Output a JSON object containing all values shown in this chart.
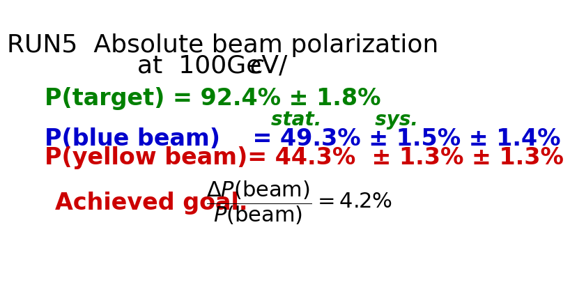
{
  "bg_color": "#ffffff",
  "title_line1": "RUN5  Absolute beam polarization",
  "title_line2": "at  100GeV/",
  "title_italic_c": "c",
  "title_color": "#000000",
  "title_fontsize": 26,
  "ptarget_text": "P(target) = 92.4% ± 1.8%",
  "ptarget_color": "#008000",
  "ptarget_fontsize": 24,
  "stat_sys_text": "stat.        sys.",
  "stat_sys_color": "#008000",
  "stat_sys_fontsize": 20,
  "pblue_label": "P(blue beam)    = 49.3% ± 1.5% ± 1.4%",
  "pblue_color": "#0000cc",
  "pblue_fontsize": 24,
  "pyellow_label": "P(yellow beam)= 44.3%  ± 1.3% ± 1.3%",
  "pyellow_color": "#cc0000",
  "pyellow_fontsize": 24,
  "achieved_text": "Achieved goal.",
  "achieved_color": "#cc0000",
  "achieved_fontsize": 24,
  "formula_color": "#000000",
  "formula_fontsize": 22
}
